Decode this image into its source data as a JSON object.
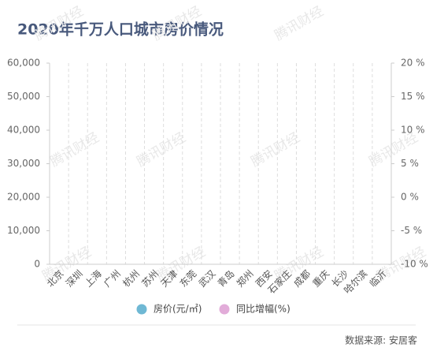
{
  "chart_data": {
    "type": "bar",
    "title": "2020年千万人口城市房价情况",
    "watermark": "腾讯财经",
    "source": "数据来源: 安居客",
    "categories": [
      "北京",
      "深圳",
      "上海",
      "广州",
      "杭州",
      "苏州",
      "天津",
      "东莞",
      "武汉",
      "青岛",
      "郑州",
      "西安",
      "石家庄",
      "成都",
      "重庆",
      "长沙",
      "哈尔滨",
      "临沂"
    ],
    "series": [
      {
        "name": "房价(元/㎡)",
        "color": "#6fb8d4",
        "values": [
          null,
          null,
          null,
          null,
          null,
          null,
          null,
          null,
          null,
          null,
          null,
          null,
          null,
          null,
          null,
          null,
          null,
          null
        ]
      },
      {
        "name": "同比增幅(%)",
        "color": "#e2acd9",
        "axis": "y2",
        "values": [
          null,
          null,
          null,
          null,
          null,
          null,
          null,
          null,
          null,
          null,
          null,
          null,
          null,
          null,
          null,
          null,
          null,
          null
        ]
      }
    ],
    "ylim": [
      0,
      60000
    ],
    "yticks": [
      0,
      {
        "value": 10000,
        "label": "10,000"
      },
      {
        "value": 20000,
        "label": "20,000"
      },
      {
        "value": 30000,
        "label": "30,000"
      },
      {
        "value": 40000,
        "label": "40,000"
      },
      {
        "value": 50000,
        "label": "50,000"
      },
      {
        "value": 60000,
        "label": "60,000"
      }
    ],
    "y2lim": [
      -10,
      20
    ],
    "y2ticks": [
      {
        "value": -10,
        "label": "-10 %"
      },
      {
        "value": -5,
        "label": "-5 %"
      },
      {
        "value": 0,
        "label": "0 %"
      },
      {
        "value": 5,
        "label": "5 %"
      },
      {
        "value": 10,
        "label": "10 %"
      },
      {
        "value": 15,
        "label": "15 %"
      },
      {
        "value": 20,
        "label": "20 %"
      }
    ]
  }
}
